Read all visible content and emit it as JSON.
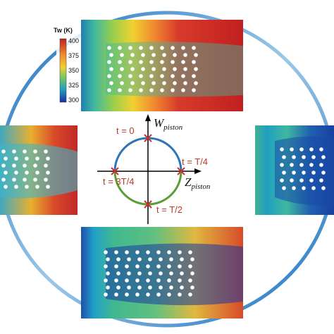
{
  "colorbar": {
    "title": "Tw (K)",
    "ticks": [
      "400",
      "375",
      "350",
      "325",
      "300"
    ]
  },
  "phase_diagram": {
    "y_axis_label": "W",
    "y_axis_subscript": "piston",
    "x_axis_label": "Z",
    "x_axis_subscript": "piston",
    "points": [
      "t = 0",
      "t = T/4",
      "t = T/2",
      "t = 3T/4"
    ]
  }
}
